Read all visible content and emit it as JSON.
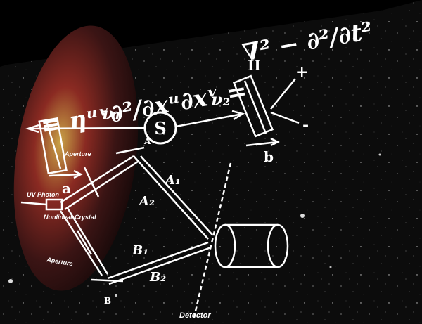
{
  "equation": {
    "left": "≡ ηᵘᵛ∂²/∂xᵘ∂xᵛ = ",
    "right": "∇² − ∂²/∂t²"
  },
  "labels": {
    "nu1": "ν₁",
    "nu2": "ν₂",
    "source": "S",
    "roman_two": "II",
    "plus": "+",
    "minus": "-",
    "a": "a",
    "b": "b",
    "A": "A",
    "B": "B",
    "A1": "A₁",
    "A2": "A₂",
    "B1": "B₁",
    "B2": "B₂",
    "aperture_top": "Aperture",
    "uv_photon": "UV Photon",
    "nonlinear_crystal": "Nonlinear Crystal",
    "aperture_bottom": "Aperture",
    "detector": "Detector"
  },
  "colors": {
    "background": "#000000",
    "ink": "#ffffff",
    "nebula_dark": "#2a0f10",
    "nebula_red": "#8a2a22",
    "nebula_gold": "#c9a347"
  }
}
